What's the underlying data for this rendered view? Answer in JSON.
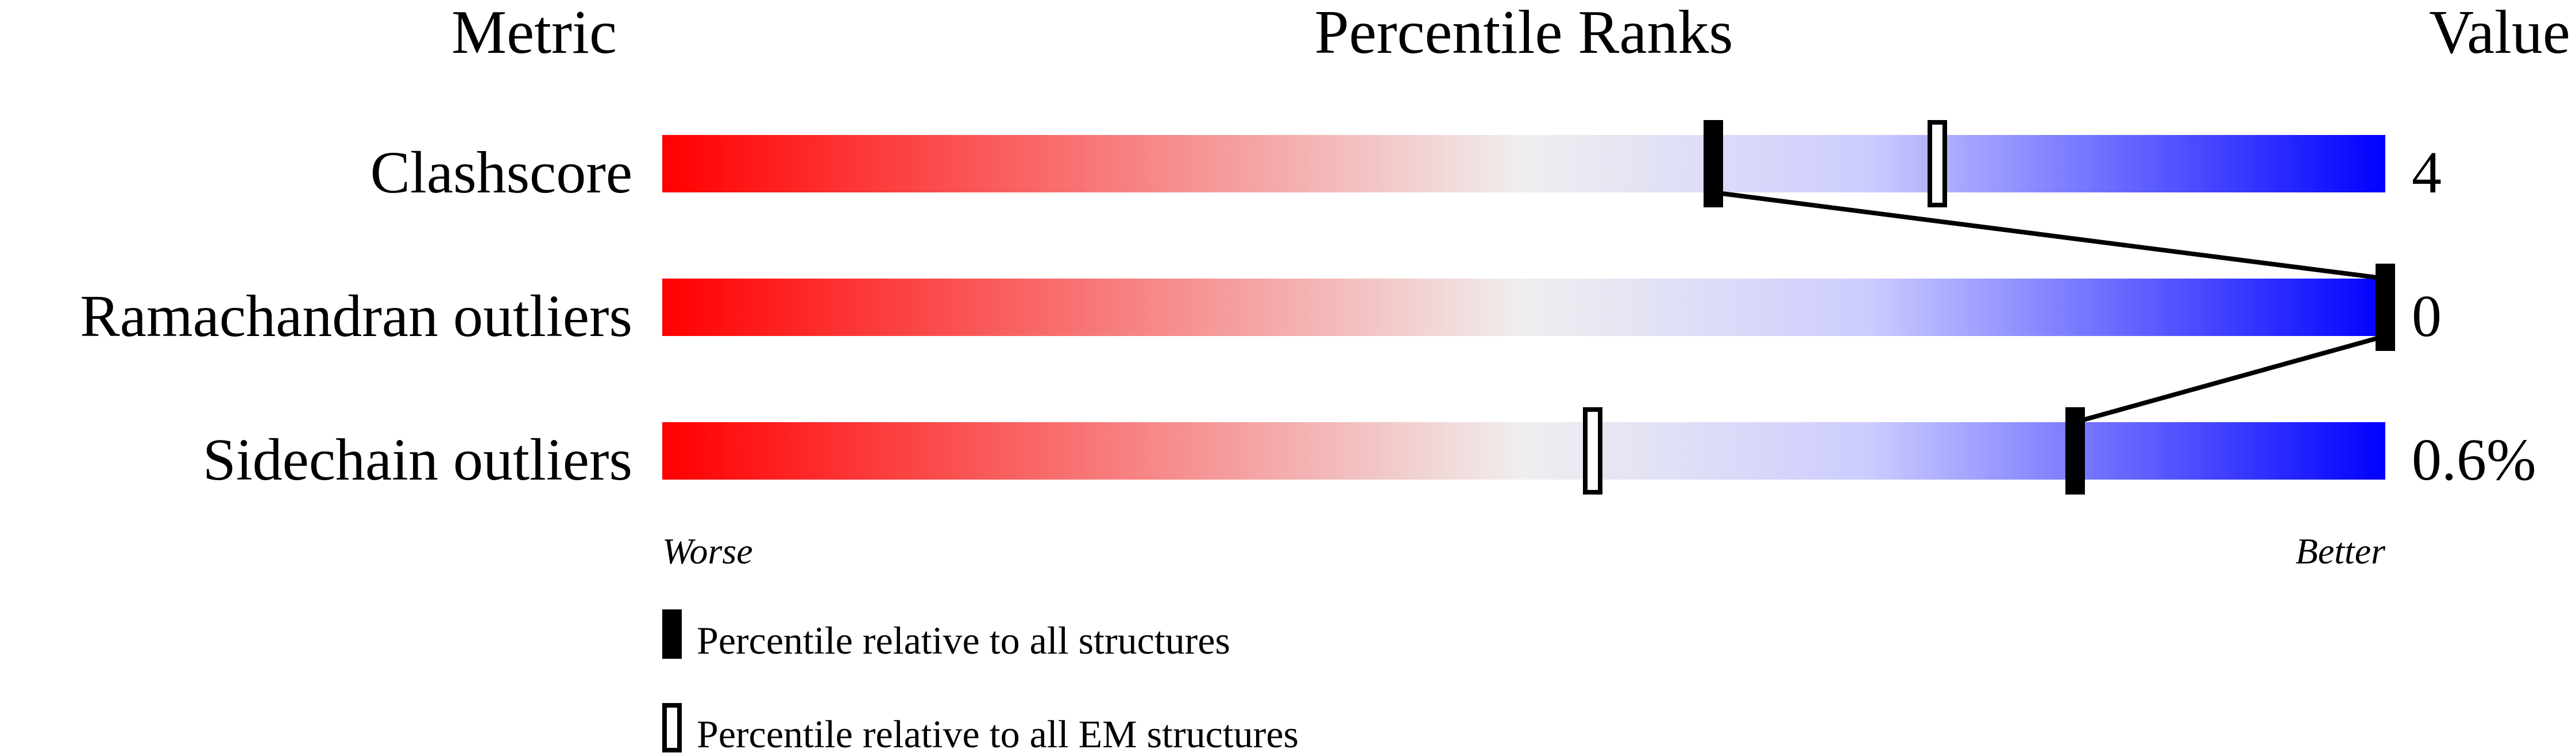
{
  "chart_data": {
    "type": "bar",
    "headers": {
      "metric": "Metric",
      "ranks": "Percentile Ranks",
      "value": "Value"
    },
    "xlim": [
      0,
      100
    ],
    "axis_labels": {
      "left": "Worse",
      "right": "Better"
    },
    "metrics": [
      {
        "label": "Clashscore",
        "value": "4",
        "percentile_all": 61,
        "percentile_em": 74
      },
      {
        "label": "Ramachandran outliers",
        "value": "0",
        "percentile_all": 100,
        "percentile_em": null
      },
      {
        "label": "Sidechain outliers",
        "value": "0.6%",
        "percentile_all": 82,
        "percentile_em": 54
      }
    ],
    "legend": [
      {
        "marker": "filled",
        "label": "Percentile relative to all structures"
      },
      {
        "marker": "outline",
        "label": "Percentile relative to all EM structures"
      }
    ],
    "colors": {
      "worse": "#ff0000",
      "middle": "#efefef",
      "better": "#0000ff",
      "marker": "#000000"
    }
  }
}
